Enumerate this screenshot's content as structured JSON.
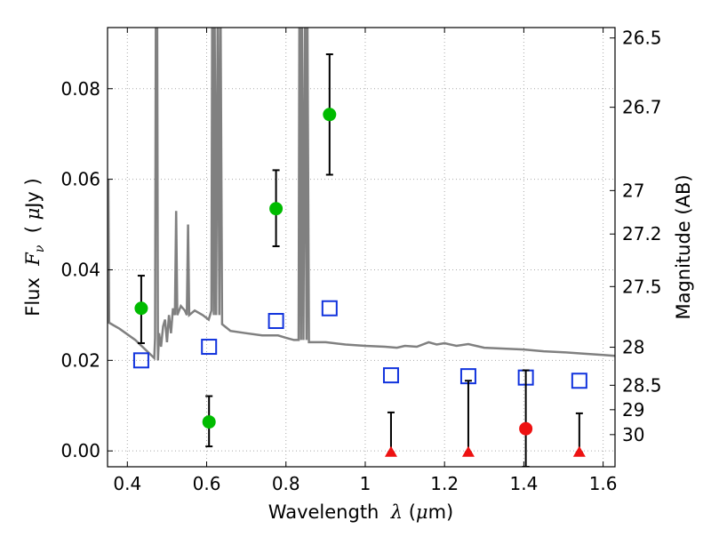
{
  "chart_data": {
    "type": "scatter",
    "xlabel": "Wavelength  λ (μm)",
    "ylabel": "Flux  Fν  ( μJy )",
    "y2label": "Magnitude (AB)",
    "xlim": [
      0.35,
      1.63
    ],
    "ylim": [
      -0.0035,
      0.0935
    ],
    "grid": true,
    "grid_style": "dotted",
    "x_ticks": [
      0.4,
      0.6,
      0.8,
      1.0,
      1.2,
      1.4,
      1.6
    ],
    "x_tick_labels": [
      "0.4",
      "0.6",
      "0.8",
      "1",
      "1.2",
      "1.4",
      "1.6"
    ],
    "y_ticks": [
      0.0,
      0.02,
      0.04,
      0.06,
      0.08
    ],
    "y_tick_labels": [
      "0.00",
      "0.02",
      "0.04",
      "0.06",
      "0.08"
    ],
    "y2_ticks": [
      {
        "label": "26.5",
        "flux": 0.0912
      },
      {
        "label": "26.7",
        "flux": 0.0759
      },
      {
        "label": "27",
        "flux": 0.0575
      },
      {
        "label": "27.2",
        "flux": 0.0479
      },
      {
        "label": "27.5",
        "flux": 0.0363
      },
      {
        "label": "28",
        "flux": 0.0229
      },
      {
        "label": "28.5",
        "flux": 0.0145
      },
      {
        "label": "29",
        "flux": 0.0091
      },
      {
        "label": "30",
        "flux": 0.0036
      }
    ],
    "colors": {
      "detection": "#00bb00",
      "marginal": "#ee1111",
      "upper_limit": "#ee1111",
      "model": "#808080",
      "model_photometry": "#1133dd",
      "errorbar": "#000000",
      "grid": "#aaaaaa"
    },
    "series": [
      {
        "kind": "detection",
        "marker": "circle",
        "points": [
          {
            "x": 0.435,
            "y": 0.0315,
            "yerr_low": 0.0077,
            "yerr_high": 0.0072
          },
          {
            "x": 0.606,
            "y": 0.0064,
            "yerr_low": 0.0054,
            "yerr_high": 0.0057
          },
          {
            "x": 0.775,
            "y": 0.0535,
            "yerr_low": 0.0083,
            "yerr_high": 0.0085
          },
          {
            "x": 0.91,
            "y": 0.0743,
            "yerr_low": 0.0133,
            "yerr_high": 0.0133
          }
        ]
      },
      {
        "kind": "marginal",
        "marker": "circle",
        "points": [
          {
            "x": 1.405,
            "y": 0.0049,
            "yerr_low": 0.0084,
            "yerr_high": 0.0129
          }
        ]
      },
      {
        "kind": "upper_limit",
        "marker": "triangle",
        "points": [
          {
            "x": 1.065,
            "y": -0.0003,
            "yerr_high": 0.0088
          },
          {
            "x": 1.26,
            "y": -0.0003,
            "yerr_high": 0.0158
          },
          {
            "x": 1.54,
            "y": -0.0003,
            "yerr_high": 0.0086
          }
        ]
      },
      {
        "kind": "model_photometry",
        "marker": "open-square",
        "points": [
          {
            "x": 0.435,
            "y": 0.02
          },
          {
            "x": 0.606,
            "y": 0.023
          },
          {
            "x": 0.775,
            "y": 0.0287
          },
          {
            "x": 0.91,
            "y": 0.0315
          },
          {
            "x": 1.065,
            "y": 0.0167
          },
          {
            "x": 1.26,
            "y": 0.0165
          },
          {
            "x": 1.405,
            "y": 0.0162
          },
          {
            "x": 1.54,
            "y": 0.0155
          }
        ]
      },
      {
        "kind": "model",
        "marker": "line",
        "points": [
          [
            0.35,
            0.0285
          ],
          [
            0.352,
            0.06
          ],
          [
            0.354,
            0.0283
          ],
          [
            0.38,
            0.027
          ],
          [
            0.42,
            0.0245
          ],
          [
            0.45,
            0.022
          ],
          [
            0.468,
            0.0205
          ],
          [
            0.47,
            0.025
          ],
          [
            0.472,
            0.1
          ],
          [
            0.475,
            0.1
          ],
          [
            0.477,
            0.02
          ],
          [
            0.48,
            0.026
          ],
          [
            0.485,
            0.023
          ],
          [
            0.49,
            0.0275
          ],
          [
            0.495,
            0.029
          ],
          [
            0.5,
            0.024
          ],
          [
            0.505,
            0.03
          ],
          [
            0.51,
            0.026
          ],
          [
            0.515,
            0.0315
          ],
          [
            0.52,
            0.03
          ],
          [
            0.523,
            0.053
          ],
          [
            0.526,
            0.03
          ],
          [
            0.535,
            0.032
          ],
          [
            0.545,
            0.031
          ],
          [
            0.55,
            0.03
          ],
          [
            0.553,
            0.05
          ],
          [
            0.556,
            0.03
          ],
          [
            0.57,
            0.031
          ],
          [
            0.59,
            0.03
          ],
          [
            0.605,
            0.029
          ],
          [
            0.612,
            0.031
          ],
          [
            0.614,
            0.1
          ],
          [
            0.618,
            0.03
          ],
          [
            0.62,
            0.1
          ],
          [
            0.624,
            0.03
          ],
          [
            0.628,
            0.1
          ],
          [
            0.632,
            0.03
          ],
          [
            0.635,
            0.1
          ],
          [
            0.639,
            0.028
          ],
          [
            0.66,
            0.0265
          ],
          [
            0.7,
            0.026
          ],
          [
            0.74,
            0.0255
          ],
          [
            0.78,
            0.0255
          ],
          [
            0.8,
            0.025
          ],
          [
            0.82,
            0.0245
          ],
          [
            0.832,
            0.0245
          ],
          [
            0.834,
            0.1
          ],
          [
            0.838,
            0.0245
          ],
          [
            0.84,
            0.1
          ],
          [
            0.844,
            0.0245
          ],
          [
            0.848,
            0.1
          ],
          [
            0.852,
            0.0245
          ],
          [
            0.854,
            0.1
          ],
          [
            0.858,
            0.024
          ],
          [
            0.9,
            0.024
          ],
          [
            0.95,
            0.0235
          ],
          [
            1.0,
            0.0232
          ],
          [
            1.05,
            0.023
          ],
          [
            1.08,
            0.0228
          ],
          [
            1.1,
            0.0232
          ],
          [
            1.13,
            0.023
          ],
          [
            1.16,
            0.024
          ],
          [
            1.18,
            0.0235
          ],
          [
            1.2,
            0.0238
          ],
          [
            1.23,
            0.0232
          ],
          [
            1.26,
            0.0236
          ],
          [
            1.3,
            0.0228
          ],
          [
            1.35,
            0.0226
          ],
          [
            1.4,
            0.0224
          ],
          [
            1.45,
            0.022
          ],
          [
            1.5,
            0.0218
          ],
          [
            1.55,
            0.0215
          ],
          [
            1.6,
            0.0212
          ],
          [
            1.63,
            0.021
          ]
        ]
      }
    ]
  }
}
